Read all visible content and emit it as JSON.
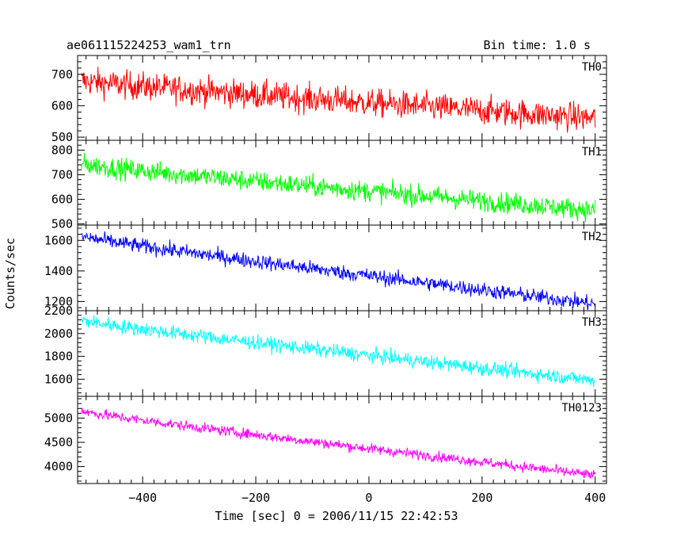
{
  "header": {
    "title": "ae061115224253_wam1_trn",
    "bin_time": "Bin time: 1.0 s"
  },
  "chart_data": {
    "type": "line",
    "xlabel": "Time [sec] 0 = 2006/11/15 22:42:53",
    "ylabel": "Counts/sec",
    "xlim": [
      -515,
      420
    ],
    "x_ticks": [
      -400,
      -200,
      0,
      200,
      400
    ],
    "x_tick_labels": [
      "−400",
      "−200",
      "0",
      "200",
      "400"
    ],
    "x_range": [
      -508,
      400
    ],
    "grid": false,
    "panels": [
      {
        "name": "TH0",
        "label": "TH0",
        "color": "#ff0000",
        "ylim": [
          490,
          760
        ],
        "yticks": [
          500,
          600,
          700
        ],
        "start": 680,
        "end": 560,
        "noise": 32
      },
      {
        "name": "TH1",
        "label": "TH1",
        "color": "#00ff00",
        "ylim": [
          495,
          840
        ],
        "yticks": [
          500,
          600,
          700,
          800
        ],
        "start": 745,
        "end": 555,
        "noise": 30
      },
      {
        "name": "TH2",
        "label": "TH2",
        "color": "#0000ff",
        "ylim": [
          1140,
          1700
        ],
        "yticks": [
          1200,
          1400,
          1600
        ],
        "start": 1630,
        "end": 1185,
        "noise": 35
      },
      {
        "name": "TH3",
        "label": "TH3",
        "color": "#00ffff",
        "ylim": [
          1450,
          2200
        ],
        "yticks": [
          1600,
          1800,
          2000,
          2200
        ],
        "start": 2120,
        "end": 1590,
        "noise": 45
      },
      {
        "name": "TH0123",
        "label": "TH0123",
        "color": "#ff00ff",
        "ylim": [
          3650,
          5450
        ],
        "yticks": [
          4000,
          4500,
          5000
        ],
        "start": 5160,
        "end": 3820,
        "noise": 75
      }
    ]
  }
}
